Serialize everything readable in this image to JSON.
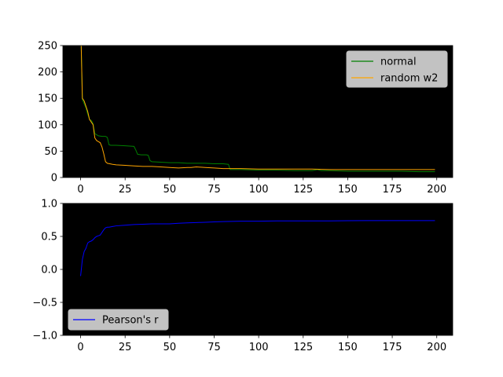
{
  "chart_data": [
    {
      "type": "line",
      "title": "",
      "xlabel": "",
      "ylabel": "",
      "xlim": [
        -9.95,
        208.95
      ],
      "ylim": [
        0,
        250
      ],
      "xticks": [
        0,
        25,
        50,
        75,
        100,
        125,
        150,
        175,
        200
      ],
      "yticks": [
        0,
        50,
        100,
        150,
        200,
        250
      ],
      "background": "#000000",
      "grid": false,
      "legend_position": "upper right",
      "series": [
        {
          "name": "normal",
          "color": "#008000",
          "x": [
            0,
            1,
            2,
            3,
            4,
            5,
            6,
            7,
            8,
            9,
            10,
            12,
            14,
            15,
            16,
            17,
            18,
            20,
            25,
            30,
            31,
            32,
            34,
            37,
            38,
            39,
            40,
            45,
            50,
            55,
            60,
            65,
            70,
            75,
            80,
            83,
            84,
            90,
            100,
            110,
            120,
            130,
            133,
            135,
            140,
            150,
            160,
            170,
            180,
            190,
            199
          ],
          "y": [
            300,
            148,
            140,
            132,
            120,
            110,
            108,
            102,
            83,
            81,
            79,
            78,
            78,
            76,
            62,
            61,
            61,
            61,
            60,
            59,
            52,
            44,
            43,
            43,
            42,
            32,
            30,
            29,
            28,
            28,
            27,
            27,
            27,
            26,
            26,
            25,
            15,
            15,
            14,
            14,
            13,
            13,
            15,
            13,
            13,
            12,
            12,
            12,
            12,
            11,
            11
          ]
        },
        {
          "name": "random w2",
          "color": "#ffa500",
          "x": [
            0,
            1,
            2,
            3,
            4,
            5,
            6,
            7,
            8,
            9,
            10,
            11,
            12,
            13,
            14,
            15,
            18,
            20,
            25,
            30,
            35,
            40,
            45,
            50,
            55,
            60,
            62,
            65,
            70,
            75,
            80,
            85,
            90,
            100,
            110,
            120,
            130,
            140,
            150,
            160,
            170,
            180,
            190,
            199
          ],
          "y": [
            300,
            150,
            145,
            135,
            125,
            110,
            105,
            100,
            75,
            70,
            68,
            66,
            58,
            45,
            30,
            27,
            25,
            24,
            23,
            22,
            21,
            21,
            20,
            19,
            18,
            19,
            19,
            20,
            19,
            18,
            17,
            17,
            17,
            16,
            16,
            16,
            16,
            15,
            15,
            15,
            15,
            15,
            15,
            15
          ]
        }
      ]
    },
    {
      "type": "line",
      "title": "",
      "xlabel": "",
      "ylabel": "",
      "xlim": [
        -9.95,
        208.95
      ],
      "ylim": [
        -1.0,
        1.0
      ],
      "xticks": [
        0,
        25,
        50,
        75,
        100,
        125,
        150,
        175,
        200
      ],
      "yticks": [
        -1.0,
        -0.5,
        0.0,
        0.5,
        1.0
      ],
      "background": "#000000",
      "grid": false,
      "legend_position": "lower left",
      "series": [
        {
          "name": "Pearson's r",
          "color": "#0000ff",
          "x": [
            0,
            1,
            2,
            3,
            4,
            5,
            6,
            7,
            8,
            9,
            10,
            11,
            12,
            13,
            14,
            15,
            16,
            18,
            20,
            25,
            30,
            35,
            40,
            45,
            50,
            55,
            60,
            65,
            70,
            75,
            80,
            90,
            100,
            110,
            120,
            130,
            140,
            150,
            160,
            170,
            180,
            190,
            199
          ],
          "y": [
            -0.1,
            0.15,
            0.27,
            0.32,
            0.4,
            0.42,
            0.43,
            0.45,
            0.48,
            0.5,
            0.51,
            0.52,
            0.56,
            0.6,
            0.63,
            0.64,
            0.64,
            0.65,
            0.66,
            0.67,
            0.68,
            0.685,
            0.69,
            0.69,
            0.69,
            0.7,
            0.705,
            0.71,
            0.715,
            0.72,
            0.725,
            0.73,
            0.73,
            0.735,
            0.735,
            0.735,
            0.735,
            0.738,
            0.74,
            0.74,
            0.74,
            0.74,
            0.74
          ]
        }
      ]
    }
  ]
}
